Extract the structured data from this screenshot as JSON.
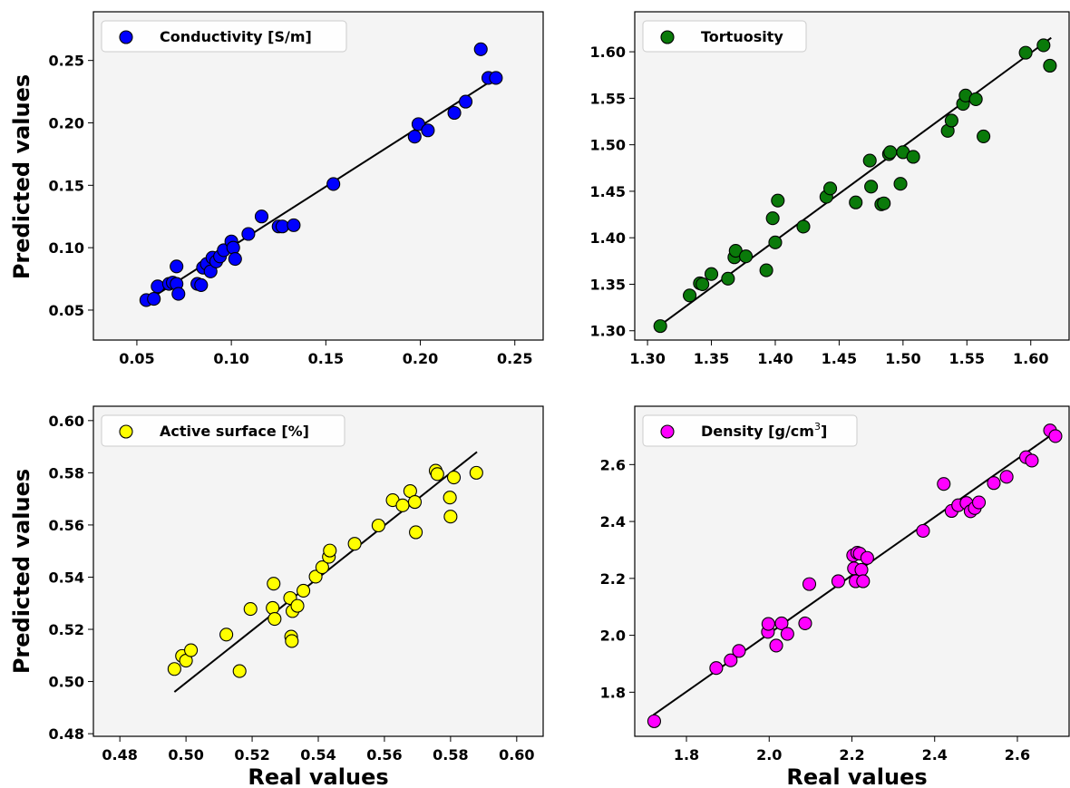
{
  "figure": {
    "xlabel": "Real values",
    "ylabel": "Predicted values"
  },
  "chart_data": [
    {
      "type": "scatter",
      "legend": "Conductivity [S/m]",
      "legend_position": "top-left",
      "color": "#0000ff",
      "background": "#f4f4f4",
      "xlim": [
        0.027,
        0.265
      ],
      "ylim": [
        0.026,
        0.289
      ],
      "xticks": [
        0.05,
        0.1,
        0.15,
        0.2,
        0.25
      ],
      "xtick_labels": [
        "0.05",
        "0.10",
        "0.15",
        "0.20",
        "0.25"
      ],
      "yticks": [
        0.05,
        0.1,
        0.15,
        0.2,
        0.25
      ],
      "ytick_labels": [
        "0.05",
        "0.10",
        "0.15",
        "0.20",
        "0.25"
      ],
      "ylabel": "Predicted values",
      "xlabel": "",
      "grid": false,
      "fit_line": [
        [
          0.056,
          0.058
        ],
        [
          0.24,
          0.236
        ]
      ],
      "x": [
        0.055,
        0.059,
        0.061,
        0.067,
        0.069,
        0.071,
        0.071,
        0.072,
        0.082,
        0.084,
        0.085,
        0.087,
        0.089,
        0.09,
        0.092,
        0.094,
        0.096,
        0.1,
        0.101,
        0.102,
        0.109,
        0.116,
        0.125,
        0.127,
        0.133,
        0.154,
        0.197,
        0.199,
        0.204,
        0.218,
        0.224,
        0.232,
        0.236,
        0.24
      ],
      "y": [
        0.058,
        0.059,
        0.069,
        0.071,
        0.072,
        0.085,
        0.071,
        0.063,
        0.071,
        0.07,
        0.084,
        0.087,
        0.081,
        0.092,
        0.089,
        0.093,
        0.098,
        0.105,
        0.1,
        0.091,
        0.111,
        0.125,
        0.117,
        0.117,
        0.118,
        0.151,
        0.189,
        0.199,
        0.194,
        0.208,
        0.217,
        0.259,
        0.236,
        0.236
      ]
    },
    {
      "type": "scatter",
      "legend": "Tortuosity",
      "legend_position": "top-left",
      "color": "#0a7a0a",
      "background": "#f4f4f4",
      "xlim": [
        1.29,
        1.63
      ],
      "ylim": [
        1.29,
        1.643
      ],
      "xticks": [
        1.3,
        1.35,
        1.4,
        1.45,
        1.5,
        1.55,
        1.6
      ],
      "xtick_labels": [
        "1.30",
        "1.35",
        "1.40",
        "1.45",
        "1.50",
        "1.55",
        "1.60"
      ],
      "yticks": [
        1.3,
        1.35,
        1.4,
        1.45,
        1.5,
        1.55,
        1.6
      ],
      "ytick_labels": [
        "1.30",
        "1.35",
        "1.40",
        "1.45",
        "1.50",
        "1.55",
        "1.60"
      ],
      "ylabel": "",
      "xlabel": "",
      "grid": false,
      "fit_line": [
        [
          1.31,
          1.306
        ],
        [
          1.616,
          1.615
        ]
      ],
      "x": [
        1.31,
        1.333,
        1.341,
        1.343,
        1.35,
        1.363,
        1.368,
        1.369,
        1.377,
        1.393,
        1.398,
        1.4,
        1.402,
        1.422,
        1.44,
        1.443,
        1.463,
        1.474,
        1.475,
        1.483,
        1.485,
        1.489,
        1.49,
        1.498,
        1.5,
        1.508,
        1.535,
        1.538,
        1.547,
        1.549,
        1.557,
        1.563,
        1.596,
        1.61,
        1.615
      ],
      "y": [
        1.305,
        1.338,
        1.351,
        1.35,
        1.361,
        1.356,
        1.379,
        1.386,
        1.38,
        1.365,
        1.421,
        1.395,
        1.44,
        1.412,
        1.444,
        1.453,
        1.438,
        1.483,
        1.455,
        1.436,
        1.437,
        1.49,
        1.492,
        1.458,
        1.492,
        1.487,
        1.515,
        1.526,
        1.544,
        1.553,
        1.549,
        1.509,
        1.599,
        1.607,
        1.585
      ]
    },
    {
      "type": "scatter",
      "legend": "Active surface [%]",
      "legend_position": "top-left",
      "color": "#ffff00",
      "background": "#f4f4f4",
      "xlim": [
        0.472,
        0.608
      ],
      "ylim": [
        0.479,
        0.6055
      ],
      "xticks": [
        0.48,
        0.5,
        0.52,
        0.54,
        0.56,
        0.58,
        0.6
      ],
      "xtick_labels": [
        "0.48",
        "0.50",
        "0.52",
        "0.54",
        "0.56",
        "0.58",
        "0.60"
      ],
      "yticks": [
        0.48,
        0.5,
        0.52,
        0.54,
        0.56,
        0.58,
        0.6
      ],
      "ytick_labels": [
        "0.48",
        "0.50",
        "0.52",
        "0.54",
        "0.56",
        "0.58",
        "0.60"
      ],
      "ylabel": "Predicted values",
      "xlabel": "Real values",
      "grid": false,
      "fit_line": [
        [
          0.4965,
          0.496
        ],
        [
          0.588,
          0.588
        ]
      ],
      "x": [
        0.4965,
        0.4988,
        0.5,
        0.5015,
        0.5122,
        0.5162,
        0.5195,
        0.5262,
        0.5265,
        0.5268,
        0.5315,
        0.5318,
        0.532,
        0.5322,
        0.5337,
        0.5355,
        0.5392,
        0.5412,
        0.5432,
        0.5435,
        0.551,
        0.5582,
        0.5625,
        0.5655,
        0.5678,
        0.5692,
        0.5695,
        0.5755,
        0.576,
        0.5798,
        0.58,
        0.581,
        0.5878
      ],
      "y": [
        0.5048,
        0.5098,
        0.508,
        0.512,
        0.518,
        0.504,
        0.5278,
        0.5282,
        0.5375,
        0.524,
        0.532,
        0.5172,
        0.5155,
        0.527,
        0.529,
        0.5348,
        0.5402,
        0.5438,
        0.5478,
        0.5502,
        0.5528,
        0.5598,
        0.5695,
        0.5675,
        0.573,
        0.5688,
        0.5572,
        0.5808,
        0.5795,
        0.5705,
        0.5632,
        0.5782,
        0.58
      ]
    },
    {
      "type": "scatter",
      "legend": "Density [g/cm³]",
      "legend_main": "Density [g/cm",
      "legend_sup": "3",
      "legend_tail": "]",
      "legend_position": "top-left",
      "color": "#ff00ff",
      "background": "#f4f4f4",
      "xlim": [
        1.675,
        2.725
      ],
      "ylim": [
        1.645,
        2.805
      ],
      "xticks": [
        1.8,
        2.0,
        2.2,
        2.4,
        2.6
      ],
      "xtick_labels": [
        "1.8",
        "2.0",
        "2.2",
        "2.4",
        "2.6"
      ],
      "yticks": [
        1.8,
        2.0,
        2.2,
        2.4,
        2.6
      ],
      "ytick_labels": [
        "1.8",
        "2.0",
        "2.2",
        "2.4",
        "2.6"
      ],
      "ylabel": "",
      "xlabel": "Real values",
      "grid": false,
      "fit_line": [
        [
          1.72,
          1.72
        ],
        [
          2.695,
          2.717
        ]
      ],
      "x": [
        1.722,
        1.872,
        1.907,
        1.927,
        1.997,
        1.998,
        2.017,
        2.03,
        2.044,
        2.087,
        2.097,
        2.167,
        2.203,
        2.205,
        2.209,
        2.213,
        2.219,
        2.223,
        2.227,
        2.237,
        2.372,
        2.422,
        2.441,
        2.457,
        2.477,
        2.487,
        2.497,
        2.507,
        2.543,
        2.574,
        2.621,
        2.635,
        2.679,
        2.692
      ],
      "y": [
        1.698,
        1.885,
        1.912,
        1.945,
        2.012,
        2.04,
        1.964,
        2.042,
        2.005,
        2.042,
        2.18,
        2.19,
        2.281,
        2.235,
        2.19,
        2.29,
        2.287,
        2.23,
        2.19,
        2.272,
        2.367,
        2.532,
        2.437,
        2.457,
        2.465,
        2.436,
        2.447,
        2.467,
        2.535,
        2.557,
        2.626,
        2.614,
        2.72,
        2.7
      ]
    }
  ]
}
